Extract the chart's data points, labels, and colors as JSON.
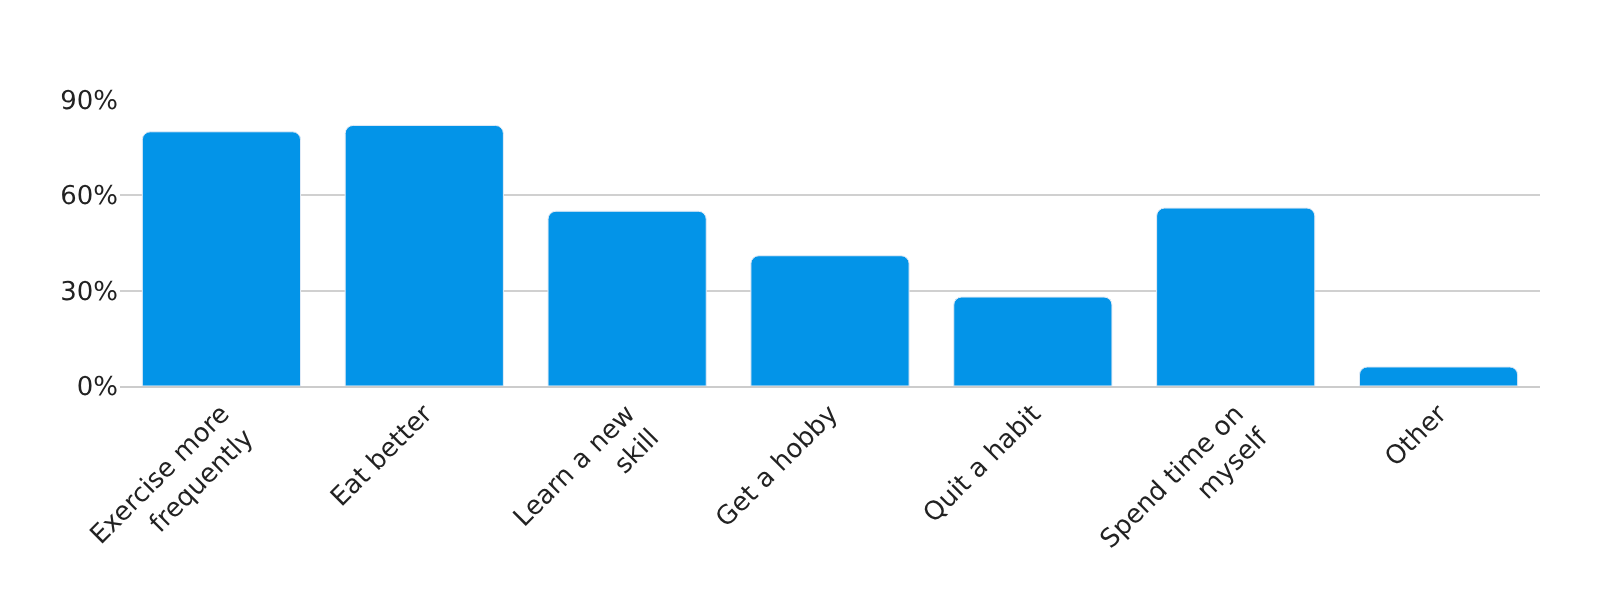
{
  "chart_data": {
    "type": "bar",
    "categories": [
      "Exercise more frequently",
      "Eat better",
      "Learn a new skill",
      "Get a hobby",
      "Quit a habit",
      "Spend time on myself",
      "Other"
    ],
    "values": [
      80,
      82,
      55,
      41,
      28,
      56,
      6
    ],
    "color": "#0394e8",
    "ylim": [
      0,
      90
    ],
    "yticks": [
      {
        "value": 0,
        "label": "0%"
      },
      {
        "value": 30,
        "label": "30%"
      },
      {
        "value": 60,
        "label": "60%"
      },
      {
        "value": 90,
        "label": "90%"
      }
    ],
    "grid": "y"
  }
}
